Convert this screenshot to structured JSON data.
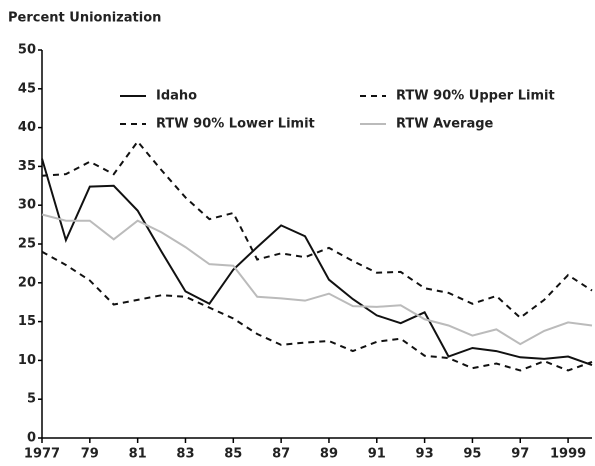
{
  "chart_data": {
    "type": "line",
    "y_label": "Percent Unionization",
    "x": [
      1977,
      1978,
      1979,
      1980,
      1981,
      1982,
      1983,
      1984,
      1985,
      1986,
      1987,
      1988,
      1989,
      1990,
      1991,
      1992,
      1993,
      1994,
      1995,
      1996,
      1997,
      1998,
      1999,
      2000
    ],
    "series": [
      {
        "name": "Idaho",
        "color": "#111111",
        "dashed": false,
        "values": [
          36,
          25.5,
          32.4,
          32.5,
          29.3,
          24,
          18.9,
          17.3,
          21.7,
          24.6,
          27.4,
          26,
          20.4,
          17.9,
          15.8,
          14.8,
          16.2,
          10.5,
          11.6,
          11.2,
          10.4,
          10.2,
          10.5,
          9.4
        ]
      },
      {
        "name": "RTW 90% Upper Limit",
        "color": "#111111",
        "dashed": true,
        "values": [
          33.8,
          34,
          35.6,
          34,
          38.2,
          34.5,
          31,
          28.2,
          29,
          23,
          23.8,
          23.3,
          24.5,
          22.8,
          21.3,
          21.4,
          19.3,
          18.7,
          17.3,
          18.3,
          15.5,
          17.8,
          21,
          19
        ]
      },
      {
        "name": "RTW 90% Lower Limit",
        "color": "#111111",
        "dashed": true,
        "values": [
          24,
          22.3,
          20.3,
          17.2,
          17.8,
          18.4,
          18.2,
          16.8,
          15.4,
          13.4,
          12,
          12.3,
          12.5,
          11.2,
          12.4,
          12.8,
          10.6,
          10.3,
          9,
          9.6,
          8.7,
          9.9,
          8.7,
          9.8
        ]
      },
      {
        "name": "RTW Average",
        "color": "#bbbbbb",
        "dashed": false,
        "values": [
          28.8,
          28,
          28,
          25.6,
          28,
          26.5,
          24.6,
          22.4,
          22.2,
          18.2,
          18,
          17.7,
          18.6,
          17,
          16.9,
          17.1,
          15.3,
          14.5,
          13.2,
          14,
          12.1,
          13.8,
          14.9,
          14.5
        ]
      }
    ],
    "xlim": [
      1977,
      2000
    ],
    "xticks": [
      1977,
      {
        "value": 1979,
        "label": "79"
      },
      {
        "value": 1981,
        "label": "81"
      },
      {
        "value": 1983,
        "label": "83"
      },
      {
        "value": 1985,
        "label": "85"
      },
      {
        "value": 1987,
        "label": "87"
      },
      {
        "value": 1989,
        "label": "89"
      },
      {
        "value": 1991,
        "label": "91"
      },
      {
        "value": 1993,
        "label": "93"
      },
      {
        "value": 1995,
        "label": "95"
      },
      {
        "value": 1997,
        "label": "97"
      },
      1999
    ],
    "ylim": [
      0,
      50
    ],
    "yticks": [
      0,
      5,
      10,
      15,
      20,
      25,
      30,
      35,
      40,
      45,
      50
    ],
    "grid": false
  }
}
